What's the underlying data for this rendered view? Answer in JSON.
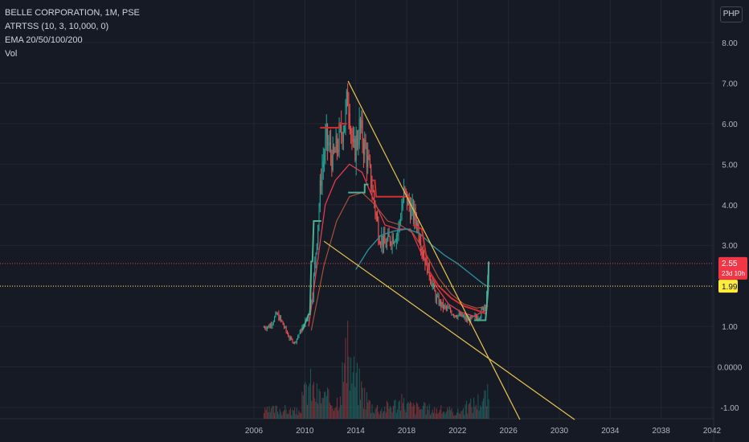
{
  "legend": {
    "symbol": "BELLE CORPORATION, 1M, PSE",
    "atr": "ATRTSS (10, 3, 10,000, 0)",
    "ema": "EMA 20/50/100/200",
    "vol": "Vol"
  },
  "currency": "PHP",
  "price_badge": {
    "value": "2.55",
    "countdown": "23d 10h",
    "color": "#f23645"
  },
  "level_badge": {
    "value": "1.99",
    "color": "#ffeb3b"
  },
  "colors": {
    "background": "#161a25",
    "grid": "#232632",
    "up": "#26a69a",
    "down": "#ef5350",
    "ema_slow": "#2d8c9a",
    "trend_line": "#e8c34f",
    "stop_up": "#4caf91",
    "stop_down": "#d32f2f"
  },
  "chart_data": {
    "type": "candlestick",
    "x_ticks": [
      "2006",
      "2010",
      "2014",
      "2018",
      "2022",
      "2026",
      "2030",
      "2034",
      "2038",
      "2042"
    ],
    "y_ticks": [
      "8.00",
      "7.00",
      "6.00",
      "5.00",
      "4.00",
      "3.00",
      "2.00",
      "1.00",
      "0.0000",
      "-1.00"
    ],
    "ylim": [
      -1.2,
      8.8
    ],
    "price_points": [
      [
        2006.7,
        0.98
      ],
      [
        2007.2,
        1.0
      ],
      [
        2007.8,
        1.3
      ],
      [
        2008.2,
        1.1
      ],
      [
        2008.8,
        0.7
      ],
      [
        2009.2,
        0.6
      ],
      [
        2009.6,
        0.85
      ],
      [
        2010.2,
        1.2
      ],
      [
        2010.6,
        1.8
      ],
      [
        2010.9,
        3.0
      ],
      [
        2011.3,
        4.8
      ],
      [
        2011.7,
        5.6
      ],
      [
        2012.2,
        5.1
      ],
      [
        2012.7,
        5.6
      ],
      [
        2013.2,
        6.2
      ],
      [
        2013.4,
        6.8
      ],
      [
        2013.8,
        5.2
      ],
      [
        2014.3,
        5.9
      ],
      [
        2014.8,
        5.3
      ],
      [
        2015.3,
        4.4
      ],
      [
        2015.8,
        3.3
      ],
      [
        2016.3,
        3.0
      ],
      [
        2016.8,
        3.2
      ],
      [
        2017.3,
        3.3
      ],
      [
        2017.8,
        4.3
      ],
      [
        2018.3,
        3.9
      ],
      [
        2018.8,
        3.6
      ],
      [
        2019.3,
        2.8
      ],
      [
        2019.8,
        2.3
      ],
      [
        2020.3,
        1.7
      ],
      [
        2020.8,
        1.5
      ],
      [
        2021.3,
        1.4
      ],
      [
        2021.8,
        1.3
      ],
      [
        2022.3,
        1.25
      ],
      [
        2022.8,
        1.15
      ],
      [
        2023.3,
        1.2
      ],
      [
        2023.8,
        1.3
      ],
      [
        2024.2,
        1.6
      ],
      [
        2024.5,
        2.55
      ]
    ],
    "ema_fast": [
      [
        2010.3,
        1.0
      ],
      [
        2011.0,
        2.6
      ],
      [
        2011.6,
        4.0
      ],
      [
        2012.4,
        4.6
      ],
      [
        2013.5,
        5.0
      ],
      [
        2014.5,
        4.8
      ],
      [
        2015.3,
        4.2
      ],
      [
        2016.3,
        3.5
      ],
      [
        2017.3,
        3.4
      ],
      [
        2018.3,
        3.4
      ],
      [
        2019.3,
        2.7
      ],
      [
        2020.3,
        2.0
      ],
      [
        2021.3,
        1.55
      ],
      [
        2022.3,
        1.35
      ],
      [
        2023.3,
        1.25
      ],
      [
        2024.2,
        1.4
      ]
    ],
    "ema_mid": [
      [
        2010.5,
        0.9
      ],
      [
        2011.5,
        2.5
      ],
      [
        2012.5,
        3.6
      ],
      [
        2013.5,
        4.2
      ],
      [
        2014.5,
        4.3
      ],
      [
        2015.5,
        4.0
      ],
      [
        2016.5,
        3.6
      ],
      [
        2017.5,
        3.5
      ],
      [
        2018.5,
        3.3
      ],
      [
        2019.5,
        2.8
      ],
      [
        2020.5,
        2.2
      ],
      [
        2021.5,
        1.8
      ],
      [
        2022.5,
        1.55
      ],
      [
        2023.5,
        1.45
      ],
      [
        2024.4,
        1.5
      ]
    ],
    "ema_slow": [
      [
        2014.0,
        2.4
      ],
      [
        2015.0,
        2.9
      ],
      [
        2016.0,
        3.25
      ],
      [
        2017.0,
        3.35
      ],
      [
        2018.0,
        3.4
      ],
      [
        2019.0,
        3.3
      ],
      [
        2020.0,
        3.0
      ],
      [
        2021.0,
        2.75
      ],
      [
        2022.0,
        2.55
      ],
      [
        2023.0,
        2.3
      ],
      [
        2024.0,
        2.05
      ],
      [
        2024.4,
        1.98
      ]
    ],
    "stop_segments": [
      {
        "color": "up",
        "points": [
          [
            2009.8,
            0.9
          ],
          [
            2010.3,
            1.3
          ],
          [
            2010.4,
            1.3
          ],
          [
            2010.5,
            2.6
          ],
          [
            2010.6,
            2.6
          ],
          [
            2010.7,
            3.6
          ],
          [
            2011.3,
            3.6
          ]
        ]
      },
      {
        "color": "down",
        "points": [
          [
            2011.2,
            5.9
          ],
          [
            2012.7,
            5.9
          ],
          [
            2012.7,
            6.0
          ],
          [
            2013.3,
            6.0
          ]
        ]
      },
      {
        "color": "up",
        "points": [
          [
            2013.4,
            4.3
          ],
          [
            2014.7,
            4.3
          ],
          [
            2014.7,
            4.5
          ],
          [
            2015.0,
            4.5
          ]
        ]
      },
      {
        "color": "down",
        "points": [
          [
            2015.3,
            4.6
          ],
          [
            2015.5,
            4.6
          ],
          [
            2015.6,
            4.2
          ],
          [
            2018.2,
            4.2
          ]
        ]
      },
      {
        "color": "down",
        "points": [
          [
            2018.5,
            3.5
          ],
          [
            2019.2,
            3.4
          ],
          [
            2019.7,
            2.4
          ],
          [
            2020.5,
            2.0
          ],
          [
            2021.5,
            1.7
          ],
          [
            2022.5,
            1.5
          ],
          [
            2023.5,
            1.4
          ],
          [
            2024.3,
            1.3
          ]
        ]
      },
      {
        "color": "up",
        "points": [
          [
            2023.3,
            1.15
          ],
          [
            2024.2,
            1.15
          ],
          [
            2024.3,
            1.5
          ],
          [
            2024.4,
            1.9
          ],
          [
            2024.45,
            2.6
          ]
        ]
      }
    ],
    "trend_lines": [
      {
        "from": [
          2013.4,
          7.05
        ],
        "to": [
          2026.9,
          -1.3
        ]
      },
      {
        "from": [
          2011.5,
          3.1
        ],
        "to": [
          2031.2,
          -1.3
        ]
      }
    ],
    "horizontal_lines": [
      {
        "y": 2.55,
        "color": "#f23645"
      },
      {
        "y": 1.99,
        "color": "#ffeb3b"
      }
    ],
    "volume_points": [
      [
        2006.6,
        0.1
      ],
      [
        2008.0,
        0.15
      ],
      [
        2009.5,
        0.1
      ],
      [
        2010.3,
        0.55
      ],
      [
        2011.0,
        0.35
      ],
      [
        2012.5,
        0.25
      ],
      [
        2013.3,
        0.95
      ],
      [
        2014.0,
        0.6
      ],
      [
        2015.2,
        0.2
      ],
      [
        2016.0,
        0.15
      ],
      [
        2017.5,
        0.25
      ],
      [
        2018.5,
        0.18
      ],
      [
        2020.3,
        0.14
      ],
      [
        2022.0,
        0.1
      ],
      [
        2024.4,
        0.35
      ]
    ]
  }
}
